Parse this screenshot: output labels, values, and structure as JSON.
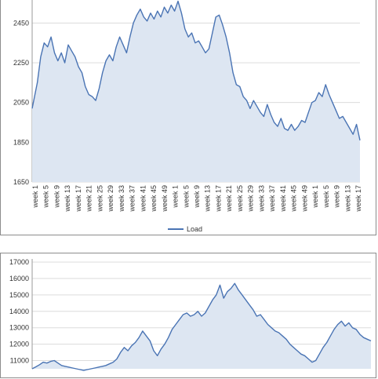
{
  "charts": [
    {
      "id": "top",
      "chart_data": {
        "type": "area",
        "ylim": [
          1650,
          2550
        ],
        "yticks": [
          1650,
          1850,
          2050,
          2250,
          2450
        ],
        "grid": true,
        "legend": "bottom",
        "series": [
          {
            "name": "Load",
            "color": "#4a74b4",
            "fill": "#dde6f2",
            "points": [
              [
                0,
                2020
              ],
              [
                3,
                2150
              ],
              [
                5,
                2280
              ],
              [
                7,
                2350
              ],
              [
                9,
                2330
              ],
              [
                11,
                2380
              ],
              [
                13,
                2300
              ],
              [
                15,
                2260
              ],
              [
                17,
                2300
              ],
              [
                19,
                2250
              ],
              [
                21,
                2340
              ],
              [
                23,
                2310
              ],
              [
                25,
                2280
              ],
              [
                27,
                2230
              ],
              [
                29,
                2200
              ],
              [
                31,
                2130
              ],
              [
                33,
                2090
              ],
              [
                35,
                2080
              ],
              [
                37,
                2060
              ],
              [
                39,
                2120
              ],
              [
                41,
                2200
              ],
              [
                43,
                2260
              ],
              [
                45,
                2290
              ],
              [
                47,
                2260
              ],
              [
                49,
                2330
              ],
              [
                51,
                2380
              ],
              [
                53,
                2340
              ],
              [
                55,
                2300
              ],
              [
                57,
                2380
              ],
              [
                59,
                2450
              ],
              [
                61,
                2490
              ],
              [
                63,
                2520
              ],
              [
                65,
                2480
              ],
              [
                67,
                2460
              ],
              [
                69,
                2500
              ],
              [
                71,
                2470
              ],
              [
                73,
                2510
              ],
              [
                75,
                2480
              ],
              [
                77,
                2530
              ],
              [
                79,
                2500
              ],
              [
                81,
                2540
              ],
              [
                83,
                2510
              ],
              [
                85,
                2560
              ],
              [
                87,
                2500
              ],
              [
                89,
                2420
              ],
              [
                91,
                2380
              ],
              [
                93,
                2400
              ],
              [
                95,
                2350
              ],
              [
                97,
                2360
              ],
              [
                99,
                2330
              ],
              [
                101,
                2300
              ],
              [
                103,
                2320
              ],
              [
                105,
                2400
              ],
              [
                107,
                2480
              ],
              [
                109,
                2490
              ],
              [
                111,
                2440
              ],
              [
                113,
                2380
              ],
              [
                115,
                2300
              ],
              [
                117,
                2200
              ],
              [
                119,
                2140
              ],
              [
                121,
                2130
              ],
              [
                123,
                2080
              ],
              [
                125,
                2060
              ],
              [
                127,
                2020
              ],
              [
                129,
                2060
              ],
              [
                131,
                2030
              ],
              [
                133,
                2000
              ],
              [
                135,
                1980
              ],
              [
                137,
                2040
              ],
              [
                139,
                1990
              ],
              [
                141,
                1950
              ],
              [
                143,
                1930
              ],
              [
                145,
                1970
              ],
              [
                147,
                1920
              ],
              [
                149,
                1910
              ],
              [
                151,
                1940
              ],
              [
                153,
                1910
              ],
              [
                155,
                1930
              ],
              [
                157,
                1960
              ],
              [
                159,
                1950
              ],
              [
                161,
                2000
              ],
              [
                163,
                2050
              ],
              [
                165,
                2060
              ],
              [
                167,
                2100
              ],
              [
                169,
                2080
              ],
              [
                171,
                2140
              ],
              [
                173,
                2090
              ],
              [
                175,
                2050
              ],
              [
                177,
                2010
              ],
              [
                179,
                1970
              ],
              [
                181,
                1980
              ],
              [
                183,
                1950
              ],
              [
                185,
                1920
              ],
              [
                187,
                1890
              ],
              [
                189,
                1940
              ],
              [
                191,
                1860
              ]
            ]
          }
        ],
        "x_categories": [
          "week 1",
          "week 5",
          "week 9",
          "week 13",
          "week 17",
          "week 21",
          "week 25",
          "week 29",
          "week 33",
          "week 37",
          "week 41",
          "week 45",
          "week 49",
          "week 1",
          "week 5",
          "week 9",
          "week 13",
          "week 17",
          "week 21",
          "week 25",
          "week 29",
          "week 33",
          "week 37",
          "week 41",
          "week 45",
          "week 49",
          "week 1",
          "week 5",
          "week 9",
          "week 13",
          "week 17"
        ]
      }
    },
    {
      "id": "bottom",
      "chart_data": {
        "type": "area",
        "ylim": [
          10500,
          17000
        ],
        "yticks": [
          11000,
          12000,
          13000,
          14000,
          15000,
          16000,
          17000
        ],
        "grid": true,
        "series": [
          {
            "color": "#4a74b4",
            "fill": "#dde6f2",
            "points": [
              [
                0,
                10500
              ],
              [
                2,
                10620
              ],
              [
                4,
                10750
              ],
              [
                6,
                10900
              ],
              [
                8,
                10850
              ],
              [
                10,
                10950
              ],
              [
                12,
                11000
              ],
              [
                14,
                10850
              ],
              [
                16,
                10700
              ],
              [
                18,
                10650
              ],
              [
                20,
                10600
              ],
              [
                22,
                10550
              ],
              [
                24,
                10500
              ],
              [
                26,
                10450
              ],
              [
                28,
                10400
              ],
              [
                30,
                10450
              ],
              [
                32,
                10500
              ],
              [
                34,
                10550
              ],
              [
                36,
                10600
              ],
              [
                38,
                10650
              ],
              [
                40,
                10700
              ],
              [
                42,
                10800
              ],
              [
                44,
                10900
              ],
              [
                46,
                11100
              ],
              [
                48,
                11500
              ],
              [
                50,
                11800
              ],
              [
                52,
                11600
              ],
              [
                54,
                11900
              ],
              [
                56,
                12100
              ],
              [
                58,
                12400
              ],
              [
                60,
                12800
              ],
              [
                62,
                12500
              ],
              [
                64,
                12200
              ],
              [
                66,
                11600
              ],
              [
                68,
                11300
              ],
              [
                70,
                11700
              ],
              [
                72,
                12000
              ],
              [
                74,
                12400
              ],
              [
                76,
                12900
              ],
              [
                78,
                13200
              ],
              [
                80,
                13500
              ],
              [
                82,
                13800
              ],
              [
                84,
                13900
              ],
              [
                86,
                13700
              ],
              [
                88,
                13800
              ],
              [
                90,
                14000
              ],
              [
                92,
                13700
              ],
              [
                94,
                13900
              ],
              [
                96,
                14300
              ],
              [
                98,
                14700
              ],
              [
                100,
                15000
              ],
              [
                102,
                15600
              ],
              [
                104,
                14800
              ],
              [
                106,
                15200
              ],
              [
                108,
                15400
              ],
              [
                110,
                15700
              ],
              [
                112,
                15300
              ],
              [
                114,
                15000
              ],
              [
                116,
                14700
              ],
              [
                118,
                14400
              ],
              [
                120,
                14100
              ],
              [
                122,
                13700
              ],
              [
                124,
                13800
              ],
              [
                126,
                13500
              ],
              [
                128,
                13200
              ],
              [
                130,
                13000
              ],
              [
                132,
                12800
              ],
              [
                134,
                12700
              ],
              [
                136,
                12500
              ],
              [
                138,
                12300
              ],
              [
                140,
                12000
              ],
              [
                142,
                11800
              ],
              [
                144,
                11600
              ],
              [
                146,
                11400
              ],
              [
                148,
                11300
              ],
              [
                150,
                11100
              ],
              [
                152,
                10900
              ],
              [
                154,
                11000
              ],
              [
                156,
                11400
              ],
              [
                158,
                11800
              ],
              [
                160,
                12100
              ],
              [
                162,
                12500
              ],
              [
                164,
                12900
              ],
              [
                166,
                13200
              ],
              [
                168,
                13400
              ],
              [
                170,
                13100
              ],
              [
                172,
                13300
              ],
              [
                174,
                13000
              ],
              [
                176,
                12900
              ],
              [
                178,
                12600
              ],
              [
                180,
                12400
              ],
              [
                182,
                12300
              ],
              [
                184,
                12200
              ]
            ]
          }
        ]
      }
    }
  ]
}
